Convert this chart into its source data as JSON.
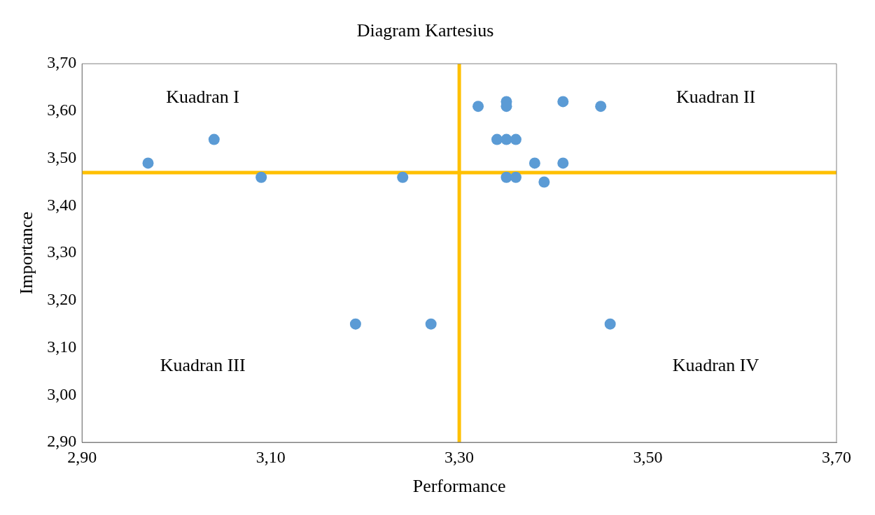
{
  "chart_data": {
    "type": "scatter",
    "title": "Diagram Kartesius",
    "xlabel": "Performance",
    "ylabel": "Importance",
    "x": [
      2.97,
      3.04,
      3.09,
      3.24,
      3.19,
      3.27,
      3.32,
      3.35,
      3.35,
      3.34,
      3.35,
      3.36,
      3.38,
      3.41,
      3.41,
      3.45,
      3.35,
      3.36,
      3.39,
      3.46
    ],
    "values": [
      3.49,
      3.54,
      3.46,
      3.46,
      3.15,
      3.15,
      3.61,
      3.62,
      3.61,
      3.54,
      3.54,
      3.54,
      3.49,
      3.62,
      3.49,
      3.61,
      3.46,
      3.46,
      3.45,
      3.15
    ],
    "color": "#5b9bd5",
    "marker": "circle",
    "xlim": [
      2.9,
      3.7
    ],
    "ylim": [
      2.9,
      3.7
    ],
    "xticks": [
      {
        "value": 2.9,
        "label": "2,90"
      },
      {
        "value": 3.1,
        "label": "3,10"
      },
      {
        "value": 3.3,
        "label": "3,30"
      },
      {
        "value": 3.5,
        "label": "3,50"
      },
      {
        "value": 3.7,
        "label": "3,70"
      }
    ],
    "yticks": [
      {
        "value": 2.9,
        "label": "2,90"
      },
      {
        "value": 3.0,
        "label": "3,00"
      },
      {
        "value": 3.1,
        "label": "3,10"
      },
      {
        "value": 3.2,
        "label": "3,20"
      },
      {
        "value": 3.3,
        "label": "3,30"
      },
      {
        "value": 3.4,
        "label": "3,40"
      },
      {
        "value": 3.5,
        "label": "3,50"
      },
      {
        "value": 3.6,
        "label": "3,60"
      },
      {
        "value": 3.7,
        "label": "3,70"
      }
    ],
    "ref_lines": [
      {
        "axis": "x",
        "value": 3.3,
        "color": "#ffc000"
      },
      {
        "axis": "y",
        "value": 3.47,
        "color": "#ffc000"
      }
    ],
    "annotations": [
      "Kuadran I",
      "Kuadran II",
      "Kuadran III",
      "Kuadran IV"
    ],
    "grid": false,
    "legend": false
  }
}
